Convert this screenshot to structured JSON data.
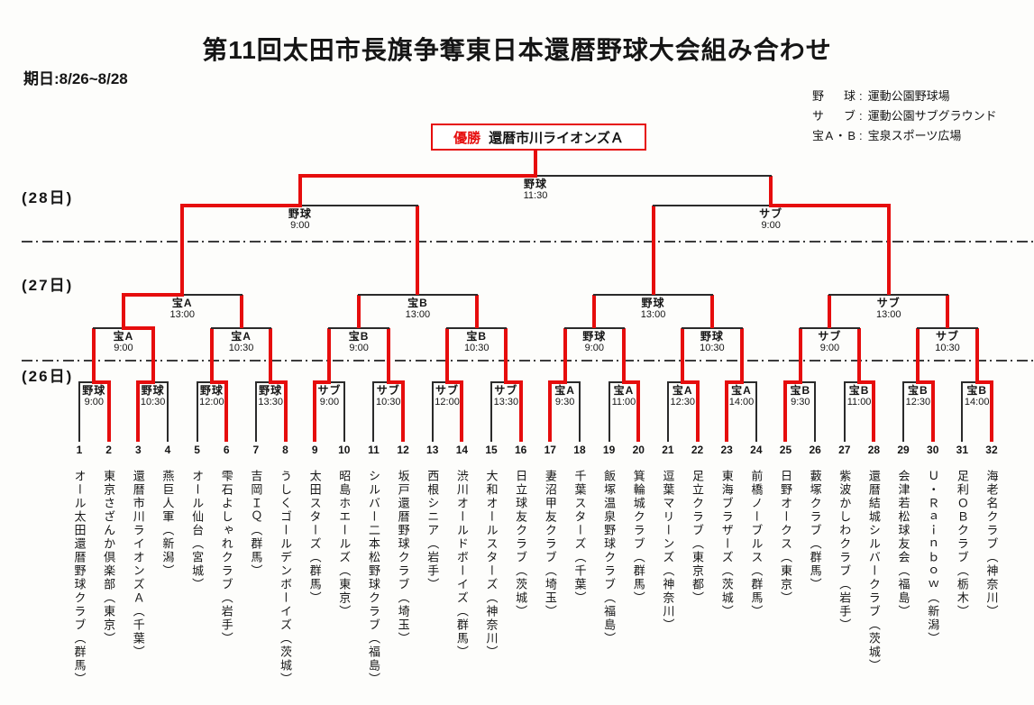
{
  "title": "第11回太田市長旗争奪東日本還暦野球大会組み合わせ",
  "date_range": "期日:8/26~8/28",
  "venues": [
    {
      "label": "野 球",
      "place": "運動公園野球場"
    },
    {
      "label": "サ ブ",
      "place": "運動公園サブグラウンド"
    },
    {
      "label": "宝A・B",
      "place": "宝泉スポーツ広場"
    }
  ],
  "champion": {
    "label": "優勝",
    "team": "還暦市川ライオンズＡ"
  },
  "day_labels": [
    "(28日)",
    "(27日)",
    "(26日)"
  ],
  "colors": {
    "accent_red": "#e60d0d",
    "line_black": "#2b2b2b"
  },
  "teams": [
    {
      "no": "1",
      "name": "オール太田還暦野球クラブ（群馬）"
    },
    {
      "no": "2",
      "name": "東京さざんか倶楽部（東京）"
    },
    {
      "no": "3",
      "name": "還暦市川ライオンズＡ（千葉）"
    },
    {
      "no": "4",
      "name": "燕巨人軍（新潟）"
    },
    {
      "no": "5",
      "name": "オール仙台（宮城）"
    },
    {
      "no": "6",
      "name": "雫石よしゃれクラブ（岩手）"
    },
    {
      "no": "7",
      "name": "吉岡ＩＱ（群馬）"
    },
    {
      "no": "8",
      "name": "うしくゴールデンボーイズ（茨城）"
    },
    {
      "no": "9",
      "name": "太田スターズ（群馬）"
    },
    {
      "no": "10",
      "name": "昭島ホエールズ（東京）"
    },
    {
      "no": "11",
      "name": "シルバー二本松野球クラブ（福島）"
    },
    {
      "no": "12",
      "name": "坂戸還暦野球クラブ（埼玉）"
    },
    {
      "no": "13",
      "name": "西根シニア（岩手）"
    },
    {
      "no": "14",
      "name": "渋川オールドボーイズ（群馬）"
    },
    {
      "no": "15",
      "name": "大和オールスターズ（神奈川）"
    },
    {
      "no": "16",
      "name": "日立球友クラブ（茨城）"
    },
    {
      "no": "17",
      "name": "妻沼甲友クラブ（埼玉）"
    },
    {
      "no": "18",
      "name": "千葉スターズ（千葉）"
    },
    {
      "no": "19",
      "name": "飯塚温泉野球クラブ（福島）"
    },
    {
      "no": "20",
      "name": "箕輪城クラブ（群馬）"
    },
    {
      "no": "21",
      "name": "逗葉マリーンズ（神奈川）"
    },
    {
      "no": "22",
      "name": "足立クラブ（東京都）"
    },
    {
      "no": "23",
      "name": "東海ブラザーズ（茨城）"
    },
    {
      "no": "24",
      "name": "前橋ノーブルス（群馬）"
    },
    {
      "no": "25",
      "name": "日野オークス（東京）"
    },
    {
      "no": "26",
      "name": "藪塚クラブ（群馬）"
    },
    {
      "no": "27",
      "name": "紫波かしわクラブ（岩手）"
    },
    {
      "no": "28",
      "name": "還暦結城シルバークラブ（茨城）"
    },
    {
      "no": "29",
      "name": "会津若松球友会（福島）"
    },
    {
      "no": "30",
      "name": "Ｕ・Ｒａｉｎｂｏｗ（新潟）"
    },
    {
      "no": "31",
      "name": "足利ＯＢクラブ（栃木）"
    },
    {
      "no": "32",
      "name": "海老名クラブ（神奈川）"
    }
  ],
  "bracket": {
    "round1": [
      {
        "venue": "野球",
        "time": "9:00",
        "winner": 2
      },
      {
        "venue": "野球",
        "time": "10:30",
        "winner": 3
      },
      {
        "venue": "野球",
        "time": "12:00",
        "winner": 6
      },
      {
        "venue": "野球",
        "time": "13:30",
        "winner": 8
      },
      {
        "venue": "サブ",
        "time": "9:00",
        "winner": 9
      },
      {
        "venue": "サブ",
        "time": "10:30",
        "winner": 12
      },
      {
        "venue": "サブ",
        "time": "12:00",
        "winner": 14
      },
      {
        "venue": "サブ",
        "time": "13:30",
        "winner": 16
      },
      {
        "venue": "宝A",
        "time": "9:30",
        "winner": 17
      },
      {
        "venue": "宝A",
        "time": "11:00",
        "winner": 20
      },
      {
        "venue": "宝A",
        "time": "12:30",
        "winner": 22
      },
      {
        "venue": "宝A",
        "time": "14:00",
        "winner": 23
      },
      {
        "venue": "宝B",
        "time": "9:30",
        "winner": 25
      },
      {
        "venue": "宝B",
        "time": "11:00",
        "winner": 28
      },
      {
        "venue": "宝B",
        "time": "12:30",
        "winner": 30
      },
      {
        "venue": "宝B",
        "time": "14:00",
        "winner": 32
      }
    ],
    "round2": [
      {
        "venue": "宝A",
        "time": "9:00",
        "winner_side": "R"
      },
      {
        "venue": "宝A",
        "time": "10:30",
        "winner_side": null
      },
      {
        "venue": "宝B",
        "time": "9:00",
        "winner_side": null
      },
      {
        "venue": "宝B",
        "time": "10:30",
        "winner_side": null
      },
      {
        "venue": "野球",
        "time": "9:00",
        "winner_side": null
      },
      {
        "venue": "野球",
        "time": "10:30",
        "winner_side": null
      },
      {
        "venue": "サブ",
        "time": "9:00",
        "winner_side": null
      },
      {
        "venue": "サブ",
        "time": "10:30",
        "winner_side": null
      }
    ],
    "quarterfinals": [
      {
        "venue": "宝A",
        "time": "13:00",
        "winner_side": "L"
      },
      {
        "venue": "宝B",
        "time": "13:00",
        "winner_side": null
      },
      {
        "venue": "野球",
        "time": "13:00",
        "winner_side": null
      },
      {
        "venue": "サブ",
        "time": "13:00",
        "winner_side": null
      }
    ],
    "semifinals": [
      {
        "venue": "野球",
        "time": "9:00",
        "winner_side": "L"
      },
      {
        "venue": "サブ",
        "time": "9:00",
        "winner_side": "R"
      }
    ],
    "final": {
      "venue": "野球",
      "time": "11:30",
      "winner_side": "L"
    }
  }
}
